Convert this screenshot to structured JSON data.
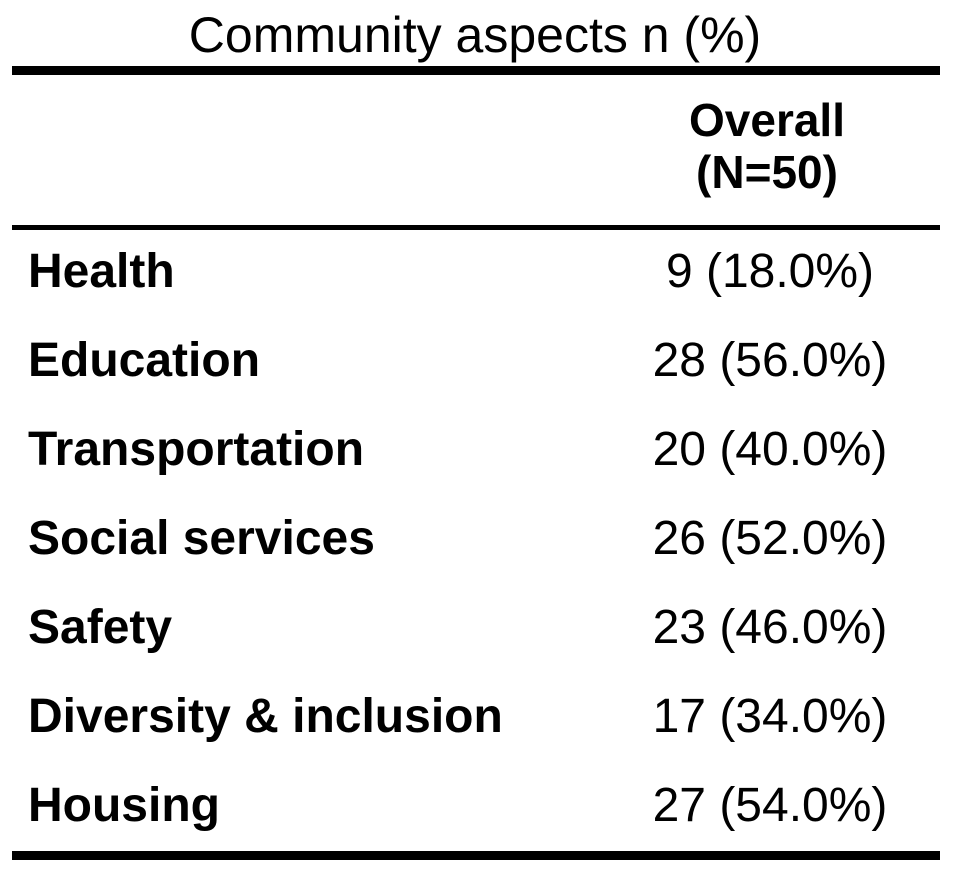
{
  "table": {
    "title": "Community aspects n (%)",
    "column_header": {
      "line1": "Overall",
      "line2": "(N=50)"
    },
    "rows": [
      {
        "label": "Health",
        "value": "9 (18.0%)"
      },
      {
        "label": "Education",
        "value": "28 (56.0%)"
      },
      {
        "label": "Transportation",
        "value": "20 (40.0%)"
      },
      {
        "label": "Social services",
        "value": "26 (52.0%)"
      },
      {
        "label": "Safety",
        "value": "23 (46.0%)"
      },
      {
        "label": "Diversity & inclusion",
        "value": "17 (34.0%)"
      },
      {
        "label": "Housing",
        "value": "27 (54.0%)"
      }
    ]
  }
}
